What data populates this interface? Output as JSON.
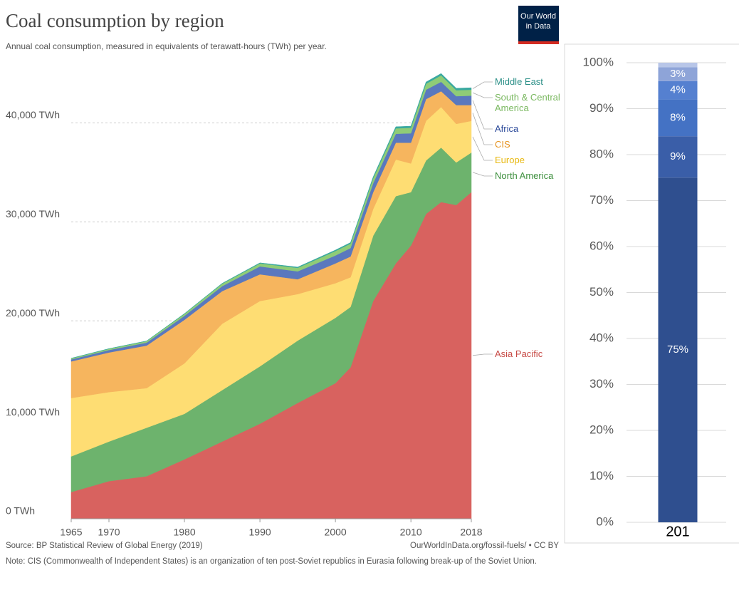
{
  "logo": [
    "Our World",
    "in Data"
  ],
  "chart_data": [
    {
      "type": "stacked-area",
      "title": "Coal consumption by region",
      "subtitle": "Annual coal consumption, measured in equivalents of terawatt-hours (TWh) per year.",
      "source": "Source: BP Statistical Review of Global Energy (2019)",
      "url": "OurWorldInData.org/fossil-fuels/ • CC BY",
      "note": "Note: CIS (Commonwealth of Independent States) is an organization of ten post-Soviet republics in Eurasia following break-up of the Soviet Union.",
      "x": [
        1965,
        1970,
        1975,
        1980,
        1985,
        1990,
        1995,
        2000,
        2002,
        2005,
        2008,
        2010,
        2012,
        2014,
        2016,
        2018
      ],
      "xlim": [
        1965,
        2018
      ],
      "xticks": [
        1965,
        1970,
        1980,
        1990,
        2000,
        2010,
        2018
      ],
      "ylim": [
        0,
        45000
      ],
      "yticks": [
        {
          "value": 0,
          "label": "0 TWh"
        },
        {
          "value": 10000,
          "label": "10,000 TWh"
        },
        {
          "value": 20000,
          "label": "20,000 TWh"
        },
        {
          "value": 30000,
          "label": "30,000 TWh"
        },
        {
          "value": 40000,
          "label": "40,000 TWh"
        }
      ],
      "grid": true,
      "series": [
        {
          "name": "Asia Pacific",
          "color": "#d8625f",
          "values": [
            2700,
            3800,
            4300,
            6000,
            7800,
            9600,
            11700,
            13700,
            15300,
            22000,
            25800,
            27600,
            30800,
            32000,
            31700,
            33000
          ]
        },
        {
          "name": "North America",
          "color": "#6db36d",
          "values": [
            3600,
            4000,
            4900,
            4600,
            5200,
            5800,
            6300,
            6600,
            6100,
            6600,
            6800,
            5400,
            5400,
            5500,
            4300,
            4000
          ]
        },
        {
          "name": "Europe",
          "color": "#fedd73",
          "values": [
            5900,
            5000,
            4000,
            5100,
            6700,
            6600,
            4700,
            3500,
            3000,
            2700,
            3700,
            2900,
            4000,
            4100,
            3900,
            3200
          ]
        },
        {
          "name": "CIS",
          "color": "#f6b55e",
          "values": [
            3700,
            4000,
            4300,
            4400,
            3300,
            2700,
            1500,
            2000,
            2100,
            1700,
            1700,
            2100,
            2200,
            1600,
            1900,
            1600
          ]
        },
        {
          "name": "Africa",
          "color": "#5a78be",
          "values": [
            200,
            250,
            300,
            400,
            500,
            800,
            800,
            800,
            850,
            900,
            900,
            950,
            950,
            950,
            900,
            950
          ]
        },
        {
          "name": "South & Central America",
          "color": "#8fcc77",
          "values": [
            100,
            120,
            150,
            200,
            250,
            300,
            350,
            450,
            450,
            500,
            550,
            550,
            600,
            650,
            600,
            600
          ]
        },
        {
          "name": "Middle East",
          "color": "#3aa9a0",
          "values": [
            20,
            20,
            20,
            30,
            40,
            60,
            80,
            100,
            110,
            140,
            160,
            170,
            180,
            190,
            200,
            200
          ]
        }
      ]
    },
    {
      "type": "stacked-bar",
      "categories": [
        "201"
      ],
      "ylim": [
        0,
        100
      ],
      "yticks": [
        {
          "value": 0,
          "label": "0%"
        },
        {
          "value": 10,
          "label": "10%"
        },
        {
          "value": 20,
          "label": "20%"
        },
        {
          "value": 30,
          "label": "30%"
        },
        {
          "value": 40,
          "label": "40%"
        },
        {
          "value": 50,
          "label": "50%"
        },
        {
          "value": 60,
          "label": "60%"
        },
        {
          "value": 70,
          "label": "70%"
        },
        {
          "value": 80,
          "label": "80%"
        },
        {
          "value": 90,
          "label": "90%"
        },
        {
          "value": 100,
          "label": "100%"
        }
      ],
      "grid": true,
      "series": [
        {
          "color": "#2f4f8f",
          "values": [
            75
          ],
          "value_labels": [
            "75%"
          ]
        },
        {
          "color": "#3a5ea8",
          "values": [
            9
          ],
          "value_labels": [
            "9%"
          ]
        },
        {
          "color": "#4472c4",
          "values": [
            8
          ],
          "value_labels": [
            "8%"
          ]
        },
        {
          "color": "#5580d0",
          "values": [
            4
          ],
          "value_labels": [
            "4%"
          ]
        },
        {
          "color": "#8ea4d8",
          "values": [
            3
          ],
          "value_labels": [
            "3%"
          ]
        },
        {
          "color": "#b8c6e8",
          "values": [
            1
          ],
          "value_labels": [
            null
          ]
        }
      ]
    }
  ]
}
